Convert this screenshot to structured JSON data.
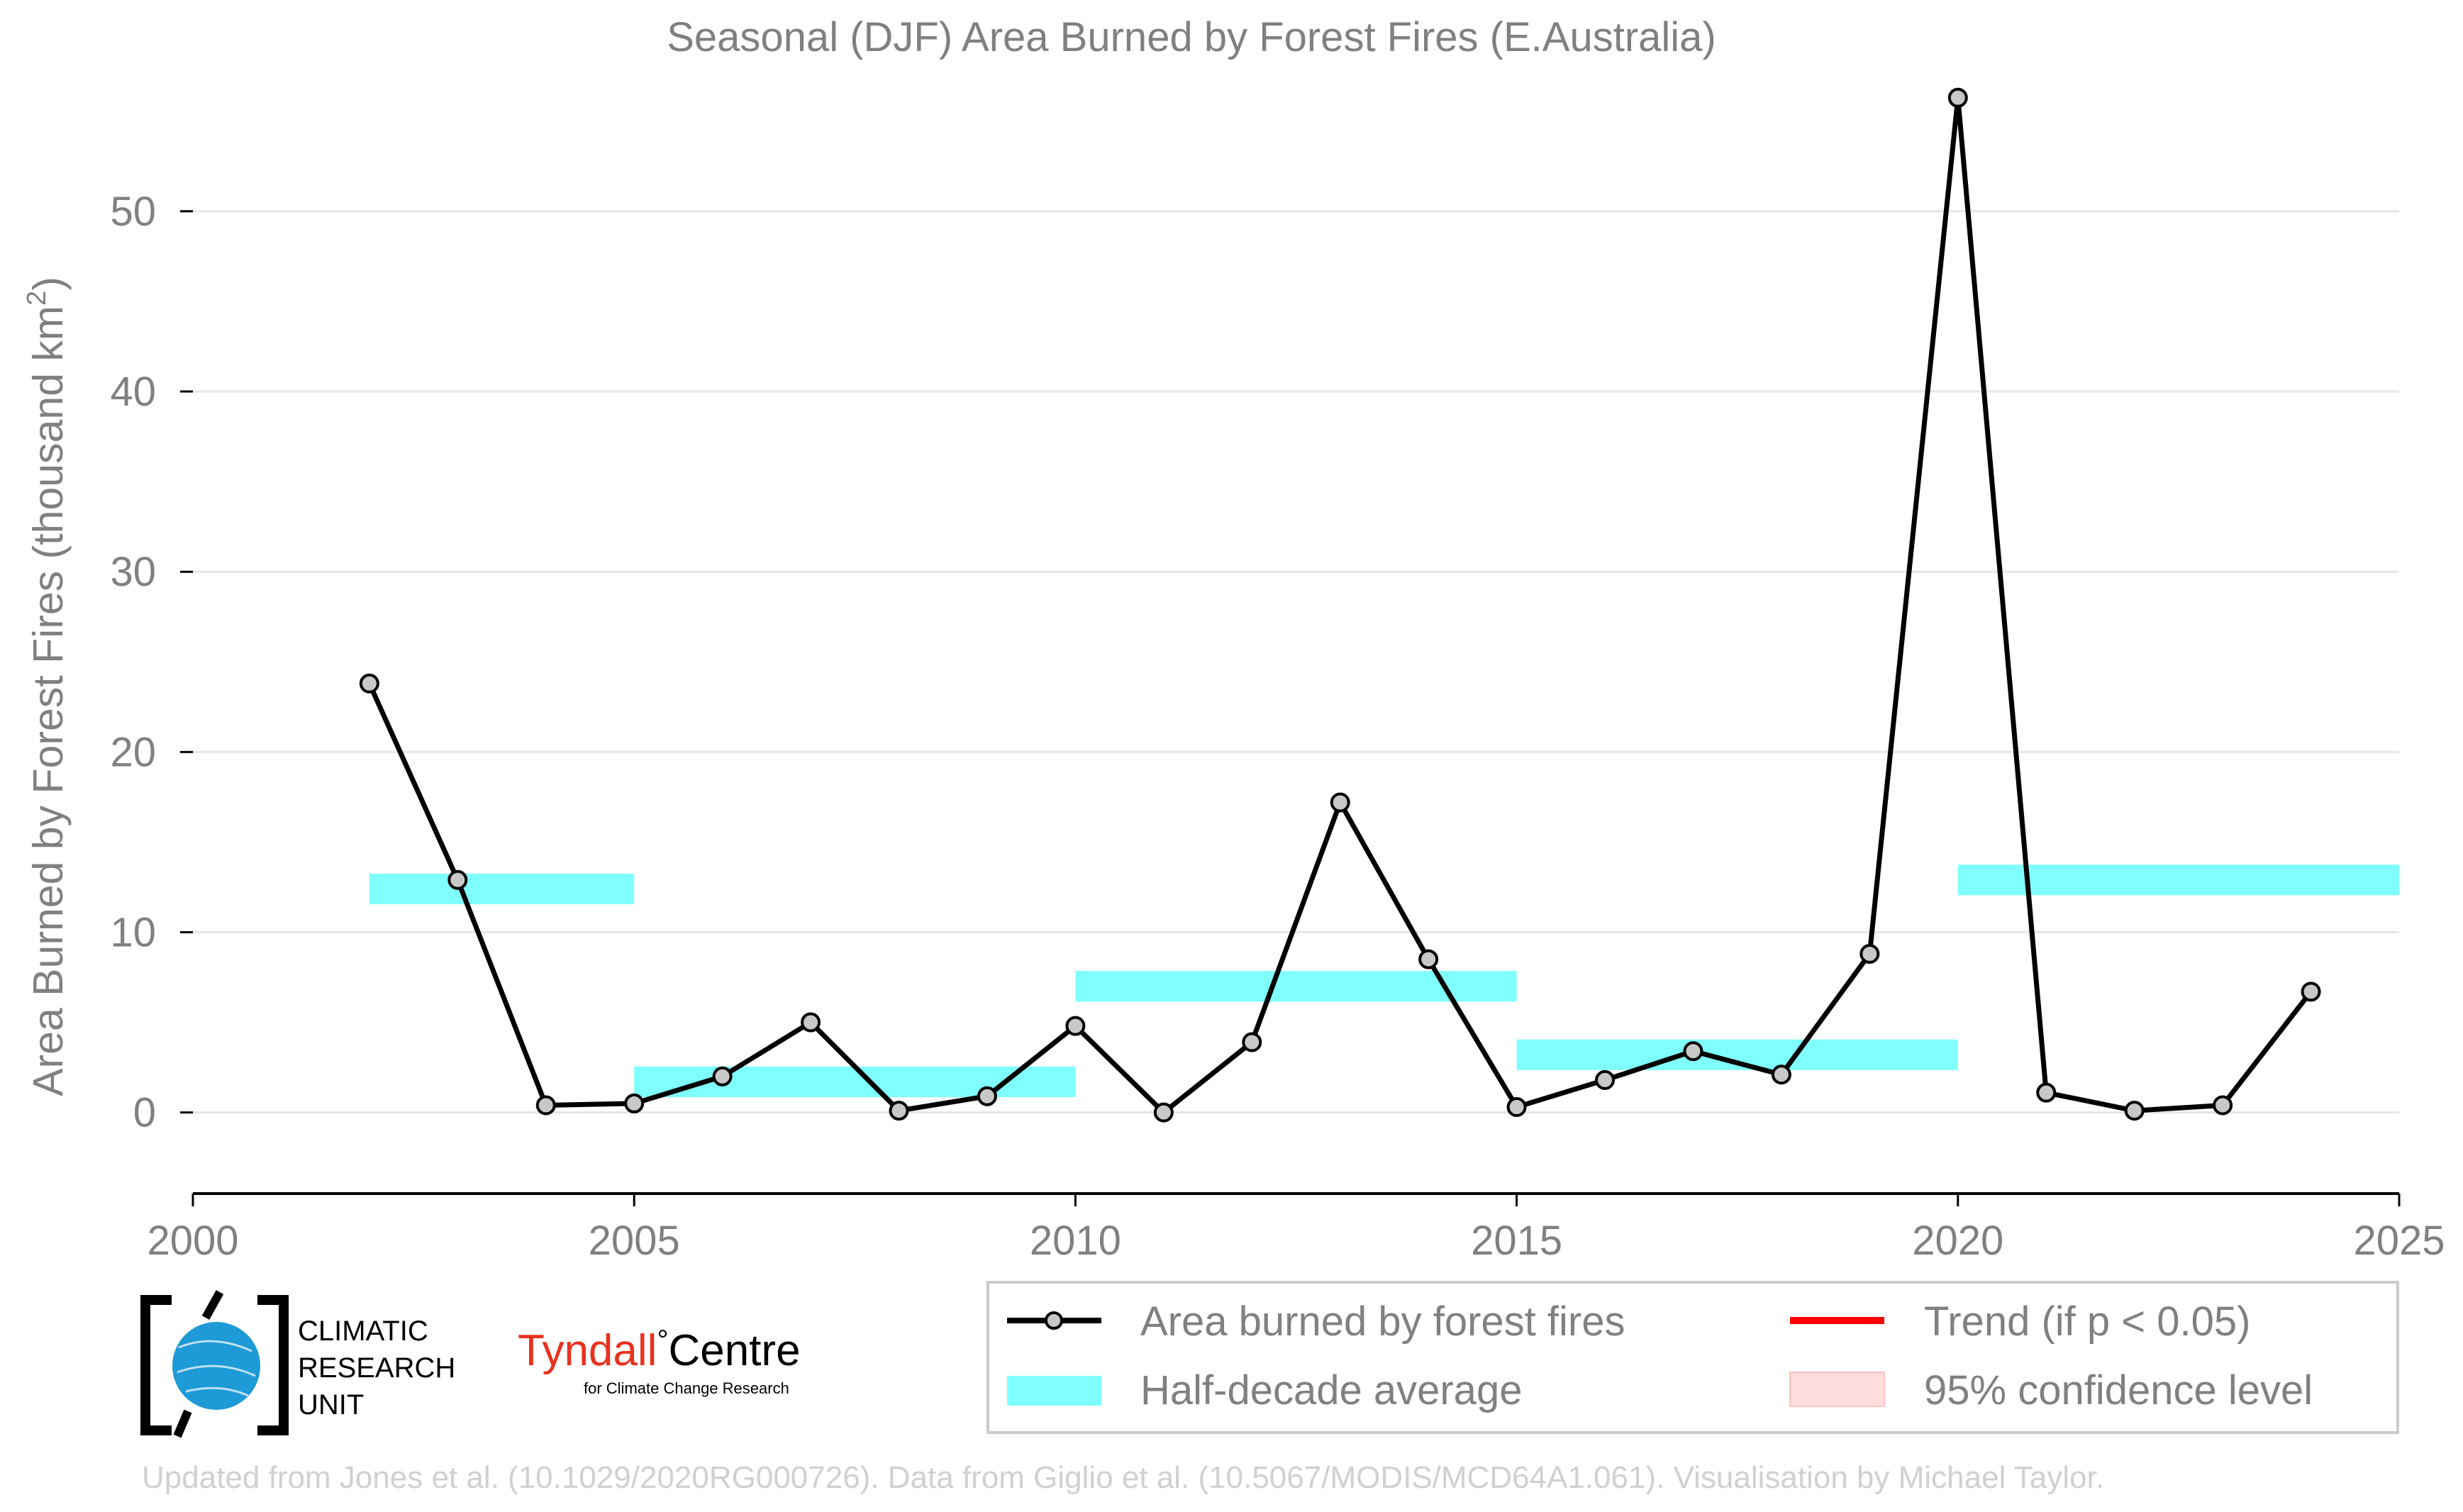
{
  "chart_data": {
    "type": "line",
    "title": "Seasonal (DJF) Area Burned by Forest Fires (E.Australia)",
    "xlabel": "",
    "ylabel": "Area Burned by Forest Fires (thousand km",
    "ylabel_superscript": "2",
    "ylabel_close": ")",
    "xlim": [
      2000,
      2025
    ],
    "ylim": [
      -4.5,
      57
    ],
    "x_ticks": [
      2000,
      2005,
      2010,
      2015,
      2020,
      2025
    ],
    "y_ticks": [
      0,
      10,
      20,
      30,
      40,
      50
    ],
    "grid": "horizontal",
    "series": [
      {
        "name": "Area burned by forest fires",
        "kind": "line-marker",
        "color": "#000000",
        "marker_fill": "#c8c8c8",
        "x": [
          2002,
          2003,
          2004,
          2005,
          2006,
          2007,
          2008,
          2009,
          2010,
          2011,
          2012,
          2013,
          2014,
          2015,
          2016,
          2017,
          2018,
          2019,
          2020,
          2021,
          2022,
          2023,
          2024
        ],
        "values": [
          23.8,
          12.9,
          0.4,
          0.5,
          2.0,
          5.0,
          0.1,
          0.9,
          4.8,
          0.0,
          3.9,
          17.2,
          8.5,
          0.3,
          1.8,
          3.4,
          2.1,
          8.8,
          56.3,
          1.1,
          0.1,
          0.4,
          6.7
        ]
      },
      {
        "name": "Half-decade average",
        "kind": "band",
        "color": "#80ffff",
        "segments": [
          {
            "x0": 2002,
            "x1": 2005,
            "value": 12.4
          },
          {
            "x0": 2005,
            "x1": 2010,
            "value": 1.7
          },
          {
            "x0": 2010,
            "x1": 2015,
            "value": 7.0
          },
          {
            "x0": 2015,
            "x1": 2020,
            "value": 3.2
          },
          {
            "x0": 2020,
            "x1": 2025,
            "value": 12.9
          }
        ]
      }
    ],
    "legend": {
      "placement": "bottom-right",
      "items": [
        {
          "label": "Area burned by forest fires",
          "kind": "line-marker",
          "color": "#000000"
        },
        {
          "label": "Trend (if p < 0.05)",
          "kind": "line",
          "color": "#ff0000"
        },
        {
          "label": "Half-decade average",
          "kind": "band",
          "color": "#80ffff"
        },
        {
          "label": "95% confidence level",
          "kind": "band",
          "color": "#ffdddd"
        }
      ]
    },
    "footer": "Updated from Jones et al. (10.1029/2020RG000726). Data from Giglio et al. (10.5067/MODIS/MCD64A1.061). Visualisation by Michael Taylor."
  },
  "logos": {
    "cru": {
      "lines": [
        "CLIMATIC",
        "RESEARCH",
        "UNIT"
      ]
    },
    "tyndall": {
      "name": "Tyndall",
      "degree": "°",
      "centre": "Centre",
      "tagline": "for Climate Change Research"
    }
  },
  "colors": {
    "text": "#808080",
    "grid": "#e6e6e6",
    "axis": "#000000",
    "cru_globe": "#1e9ad6",
    "tyndall_red": "#e8321e",
    "footer": "#d0d0d0"
  }
}
